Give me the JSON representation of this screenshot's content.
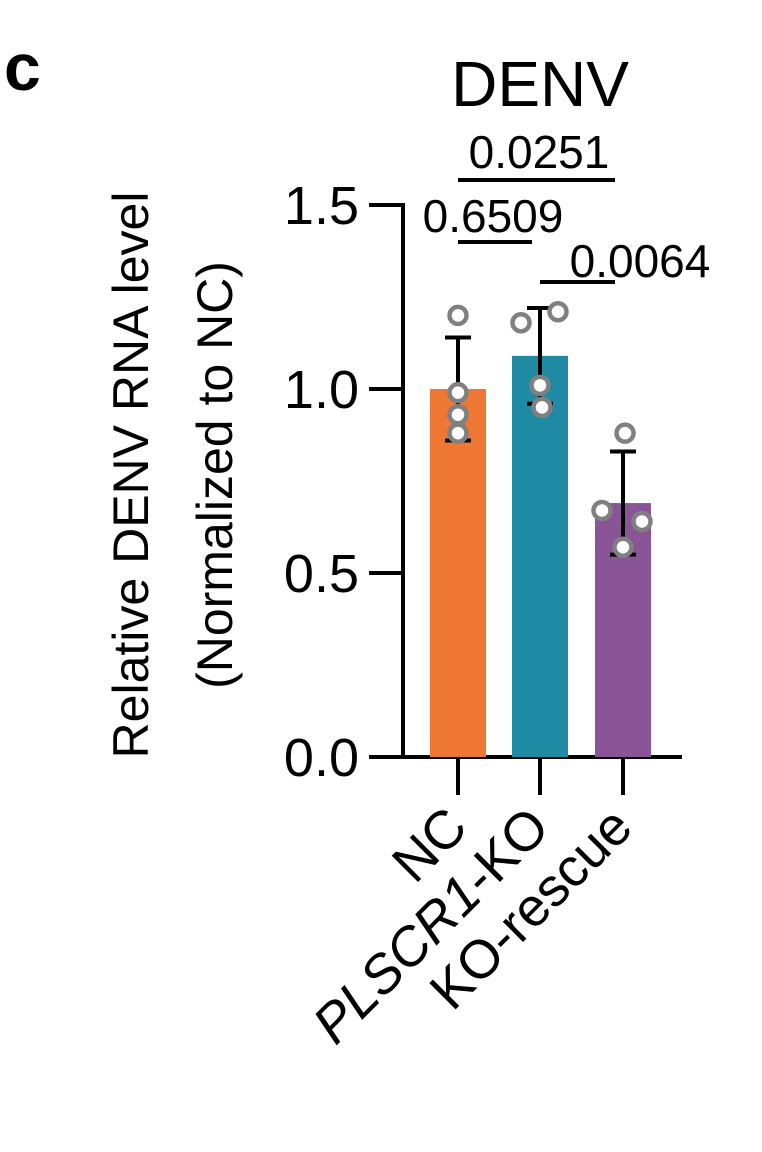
{
  "panel_label": "c",
  "chart_data": {
    "type": "bar",
    "title": "DENV",
    "ylabel_line1": "Relative DENV RNA level",
    "ylabel_line2": "(Normalized to NC)",
    "xlabel": "",
    "ylim": [
      0,
      1.5
    ],
    "yticks": [
      "0.0",
      "0.5",
      "1.0",
      "1.5"
    ],
    "categories": [
      {
        "label": "NC",
        "italic_part": "",
        "rest": "NC"
      },
      {
        "label": "PLSCR1-KO",
        "italic_part": "PLSCR1",
        "rest": "-KO"
      },
      {
        "label": "KO-rescue",
        "italic_part": "",
        "rest": "KO-rescue"
      }
    ],
    "values": [
      1.0,
      1.09,
      0.69
    ],
    "errors": [
      0.14,
      0.13,
      0.14
    ],
    "colors": [
      "#ee7733",
      "#1e8aa4",
      "#8a5596"
    ],
    "points": [
      [
        1.2,
        0.99,
        0.93,
        0.88
      ],
      [
        1.18,
        1.21,
        1.01,
        0.95
      ],
      [
        0.88,
        0.67,
        0.64,
        0.57
      ]
    ],
    "point_color": "#808080",
    "comparisons": [
      {
        "groups": [
          0,
          2
        ],
        "p": "0.0251"
      },
      {
        "groups": [
          0,
          1
        ],
        "p": "0.6509"
      },
      {
        "groups": [
          1,
          2
        ],
        "p": "0.0064"
      }
    ],
    "grid": false,
    "legend": "none"
  }
}
